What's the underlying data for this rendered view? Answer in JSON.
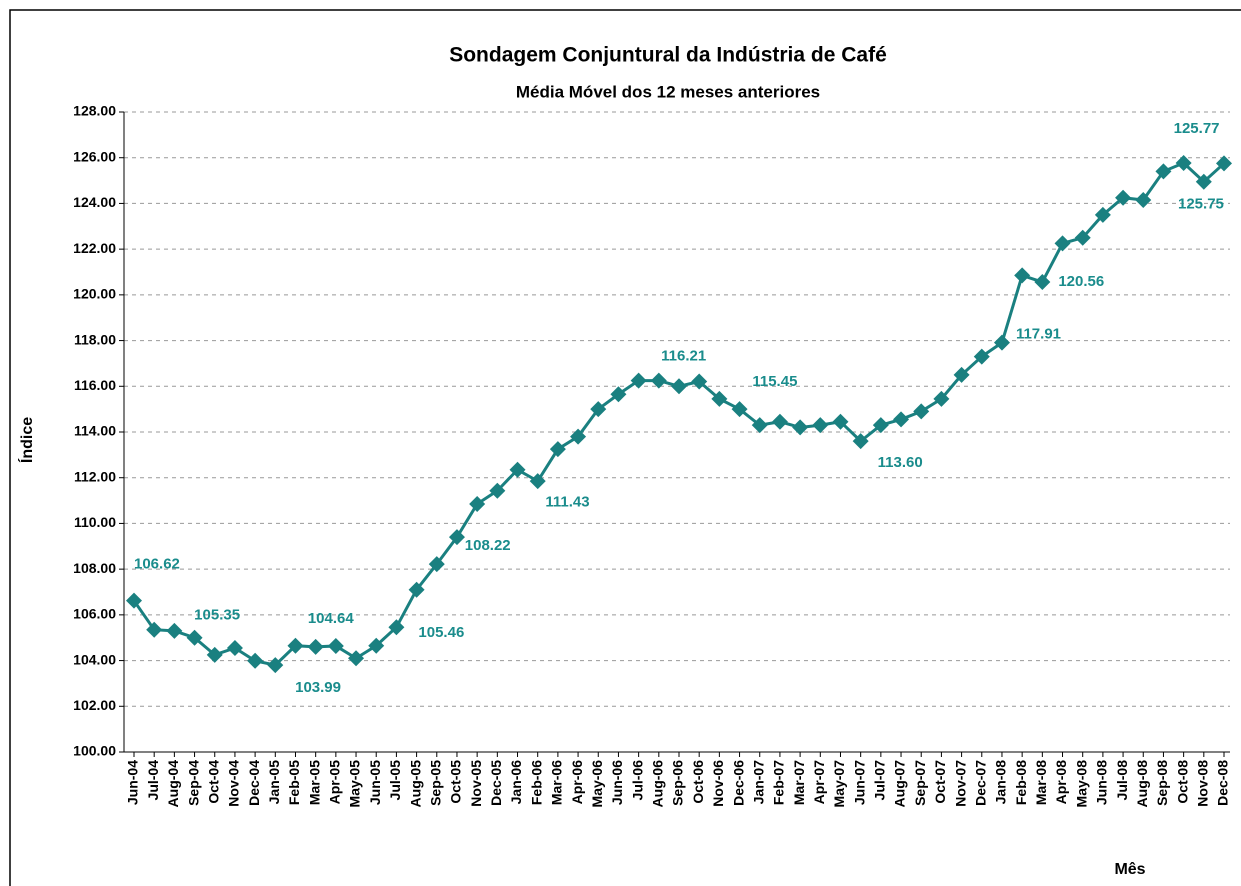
{
  "chart_data": {
    "type": "line",
    "title": "Sondagem Conjuntural da Indústria de Café",
    "subtitle": "Média Móvel dos 12 meses anteriores",
    "y_label": "Índice",
    "x_label": "Mês",
    "categories": [
      "Jun-04",
      "Jul-04",
      "Aug-04",
      "Sep-04",
      "Oct-04",
      "Nov-04",
      "Dec-04",
      "Jan-05",
      "Feb-05",
      "Mar-05",
      "Apr-05",
      "May-05",
      "Jun-05",
      "Jul-05",
      "Aug-05",
      "Sep-05",
      "Oct-05",
      "Nov-05",
      "Dec-05",
      "Jan-06",
      "Feb-06",
      "Mar-06",
      "Apr-06",
      "May-06",
      "Jun-06",
      "Jul-06",
      "Aug-06",
      "Sep-06",
      "Oct-06",
      "Nov-06",
      "Dec-06",
      "Jan-07",
      "Feb-07",
      "Mar-07",
      "Apr-07",
      "May-07",
      "Jun-07",
      "Jul-07",
      "Aug-07",
      "Sep-07",
      "Oct-07",
      "Nov-07",
      "Dec-07",
      "Jan-08",
      "Feb-08",
      "Mar-08",
      "Apr-08",
      "May-08",
      "Jun-08",
      "Jul-08",
      "Aug-08",
      "Sep-08",
      "Oct-08",
      "Nov-08",
      "Dec-08"
    ],
    "values": [
      106.62,
      105.35,
      105.3,
      105.0,
      104.25,
      104.55,
      103.99,
      103.8,
      104.65,
      104.6,
      104.64,
      104.1,
      104.65,
      105.46,
      107.1,
      108.22,
      109.4,
      110.85,
      111.43,
      112.35,
      111.85,
      113.25,
      113.8,
      115.0,
      115.65,
      116.25,
      116.25,
      116.0,
      116.21,
      115.45,
      115.0,
      114.3,
      114.45,
      114.2,
      114.3,
      114.45,
      113.6,
      114.3,
      114.55,
      114.9,
      115.45,
      116.5,
      117.3,
      117.91,
      120.85,
      120.56,
      122.25,
      122.5,
      123.5,
      124.25,
      124.15,
      125.4,
      125.77,
      124.95,
      125.75
    ],
    "value_labels": [
      "106.62",
      "105.35",
      null,
      null,
      null,
      null,
      "103.99",
      null,
      null,
      null,
      "104.64",
      null,
      null,
      "105.46",
      null,
      "108.22",
      null,
      null,
      "111.43",
      null,
      null,
      null,
      null,
      null,
      null,
      null,
      null,
      null,
      "116.21",
      "115.45",
      null,
      null,
      null,
      null,
      null,
      null,
      "113.60",
      null,
      null,
      null,
      null,
      null,
      null,
      "117.91",
      null,
      "120.56",
      null,
      null,
      null,
      null,
      null,
      null,
      "125.77",
      null,
      "125.75"
    ],
    "color": "#1a8080",
    "ylim": [
      100,
      128
    ],
    "yticks": [
      {
        "value": 100,
        "label": "100.00"
      },
      {
        "value": 102,
        "label": "102.00"
      },
      {
        "value": 104,
        "label": "104.00"
      },
      {
        "value": 106,
        "label": "106.00"
      },
      {
        "value": 108,
        "label": "108.00"
      },
      {
        "value": 110,
        "label": "110.00"
      },
      {
        "value": 112,
        "label": "112.00"
      },
      {
        "value": 114,
        "label": "114.00"
      },
      {
        "value": 116,
        "label": "116.00"
      },
      {
        "value": 118,
        "label": "118.00"
      },
      {
        "value": 120,
        "label": "120.00"
      },
      {
        "value": 122,
        "label": "122.00"
      },
      {
        "value": 124,
        "label": "124.00"
      },
      {
        "value": 126,
        "label": "126.00"
      },
      {
        "value": 128,
        "label": "128.00"
      }
    ],
    "grid": true
  }
}
